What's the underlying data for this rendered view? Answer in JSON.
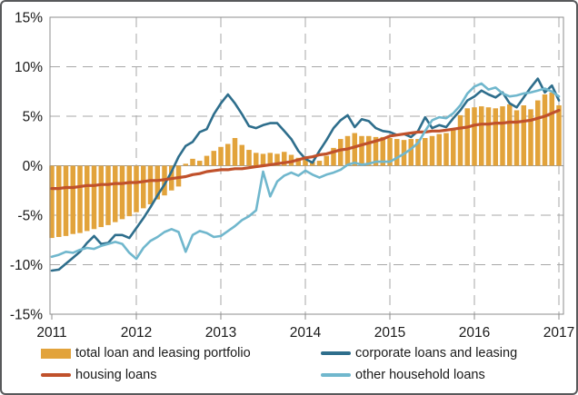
{
  "chart_data": {
    "type": "combo-bar-line",
    "frequency": "monthly",
    "x_start": "2011-01",
    "x_end": "2017-01",
    "x_tick_labels": [
      "2011",
      "2012",
      "2013",
      "2014",
      "2015",
      "2016",
      "2017"
    ],
    "y_tick_labels": [
      "15%",
      "10%",
      "5%",
      "0%",
      "-5%",
      "-10%",
      "-15%"
    ],
    "y_tick_values": [
      15,
      10,
      5,
      0,
      -5,
      -10,
      -15
    ],
    "y_axis": {
      "min": -15,
      "max": 15,
      "step": 5,
      "unit": "%"
    },
    "grid": "dashed gray horizontal every 5% and vertical every year",
    "legend_position": "bottom two-column",
    "series": [
      {
        "name": "total loan and leasing portfolio",
        "type": "bar",
        "color": "#E2A33B",
        "values": [
          -7.3,
          -7.2,
          -7.1,
          -6.9,
          -6.8,
          -6.6,
          -6.4,
          -6.2,
          -6.0,
          -5.7,
          -5.4,
          -5.1,
          -4.7,
          -4.3,
          -3.9,
          -3.4,
          -3.0,
          -2.5,
          -2.1,
          0.2,
          0.7,
          0.5,
          1.0,
          1.5,
          1.9,
          2.2,
          2.8,
          2.1,
          1.6,
          1.3,
          1.2,
          1.3,
          1.2,
          1.4,
          1.1,
          0.8,
          0.6,
          0.4,
          0.5,
          1.0,
          1.8,
          2.7,
          3.0,
          3.3,
          3.0,
          3.0,
          2.9,
          2.9,
          2.8,
          2.7,
          2.6,
          2.7,
          2.7,
          2.8,
          3.0,
          3.2,
          3.3,
          3.7,
          5.1,
          5.8,
          5.9,
          6.0,
          5.9,
          5.8,
          6.0,
          6.2,
          5.6,
          6.1,
          5.7,
          6.6,
          7.2,
          7.4,
          6.1
        ]
      },
      {
        "name": "corporate loans and leasing",
        "type": "line",
        "color": "#2E6E8C",
        "values": [
          -10.6,
          -10.5,
          -9.9,
          -9.3,
          -8.7,
          -7.8,
          -7.1,
          -7.9,
          -7.8,
          -7.0,
          -7.0,
          -7.3,
          -6.3,
          -5.3,
          -4.2,
          -3.0,
          -1.9,
          -0.6,
          0.9,
          2.0,
          2.4,
          3.4,
          3.7,
          5.2,
          6.3,
          7.2,
          6.3,
          5.2,
          4.0,
          3.8,
          4.1,
          4.3,
          4.3,
          3.5,
          2.7,
          1.5,
          0.7,
          0.3,
          1.5,
          2.6,
          3.8,
          4.6,
          5.1,
          3.9,
          4.7,
          4.5,
          3.8,
          3.5,
          3.4,
          3.1,
          3.2,
          2.9,
          3.5,
          4.9,
          3.8,
          4.1,
          3.9,
          4.8,
          5.6,
          6.6,
          7.0,
          7.6,
          7.2,
          6.9,
          7.4,
          6.3,
          5.9,
          6.9,
          7.9,
          8.8,
          7.4,
          8.1,
          6.6
        ]
      },
      {
        "name": "housing loans",
        "type": "line",
        "color": "#C0512B",
        "values": [
          -2.3,
          -2.3,
          -2.2,
          -2.2,
          -2.1,
          -2.0,
          -2.0,
          -1.9,
          -1.9,
          -1.8,
          -1.8,
          -1.7,
          -1.7,
          -1.6,
          -1.5,
          -1.5,
          -1.4,
          -1.3,
          -1.2,
          -1.1,
          -0.9,
          -0.8,
          -0.6,
          -0.5,
          -0.4,
          -0.4,
          -0.3,
          -0.3,
          -0.2,
          -0.1,
          0.0,
          0.1,
          0.2,
          0.3,
          0.4,
          0.6,
          0.8,
          0.9,
          1.1,
          1.2,
          1.4,
          1.6,
          1.7,
          1.9,
          2.1,
          2.3,
          2.5,
          2.7,
          3.0,
          3.1,
          3.2,
          3.3,
          3.4,
          3.4,
          3.5,
          3.5,
          3.6,
          3.7,
          3.8,
          3.9,
          4.1,
          4.2,
          4.2,
          4.3,
          4.3,
          4.4,
          4.4,
          4.5,
          4.6,
          4.8,
          5.0,
          5.3,
          5.6
        ]
      },
      {
        "name": "other household loans",
        "type": "line",
        "color": "#70B7CD",
        "values": [
          -9.2,
          -9.0,
          -8.7,
          -8.8,
          -8.5,
          -8.3,
          -8.4,
          -8.1,
          -7.9,
          -7.7,
          -7.9,
          -8.8,
          -9.4,
          -8.3,
          -7.6,
          -7.2,
          -6.7,
          -6.4,
          -6.7,
          -8.7,
          -7.0,
          -6.6,
          -6.8,
          -7.2,
          -7.1,
          -6.6,
          -6.1,
          -5.5,
          -5.1,
          -4.5,
          -0.6,
          -3.1,
          -1.6,
          -1.0,
          -0.7,
          -1.0,
          -0.5,
          -0.9,
          -1.2,
          -0.9,
          -0.7,
          -0.4,
          0.1,
          0.3,
          0.1,
          0.2,
          0.4,
          0.4,
          0.4,
          0.8,
          1.2,
          1.7,
          2.3,
          3.5,
          4.6,
          4.9,
          4.8,
          5.3,
          6.1,
          7.3,
          8.0,
          8.3,
          7.7,
          7.9,
          7.3,
          7.0,
          7.1,
          7.3,
          7.4,
          7.6,
          7.8,
          7.5,
          7.0
        ]
      }
    ],
    "colors": {
      "grid": "#A7A7A7",
      "zero_line": "#999999",
      "plot_border": "#8C8C8C",
      "tick_text": "#1A1A1A",
      "figure_border": "#58595B"
    }
  }
}
